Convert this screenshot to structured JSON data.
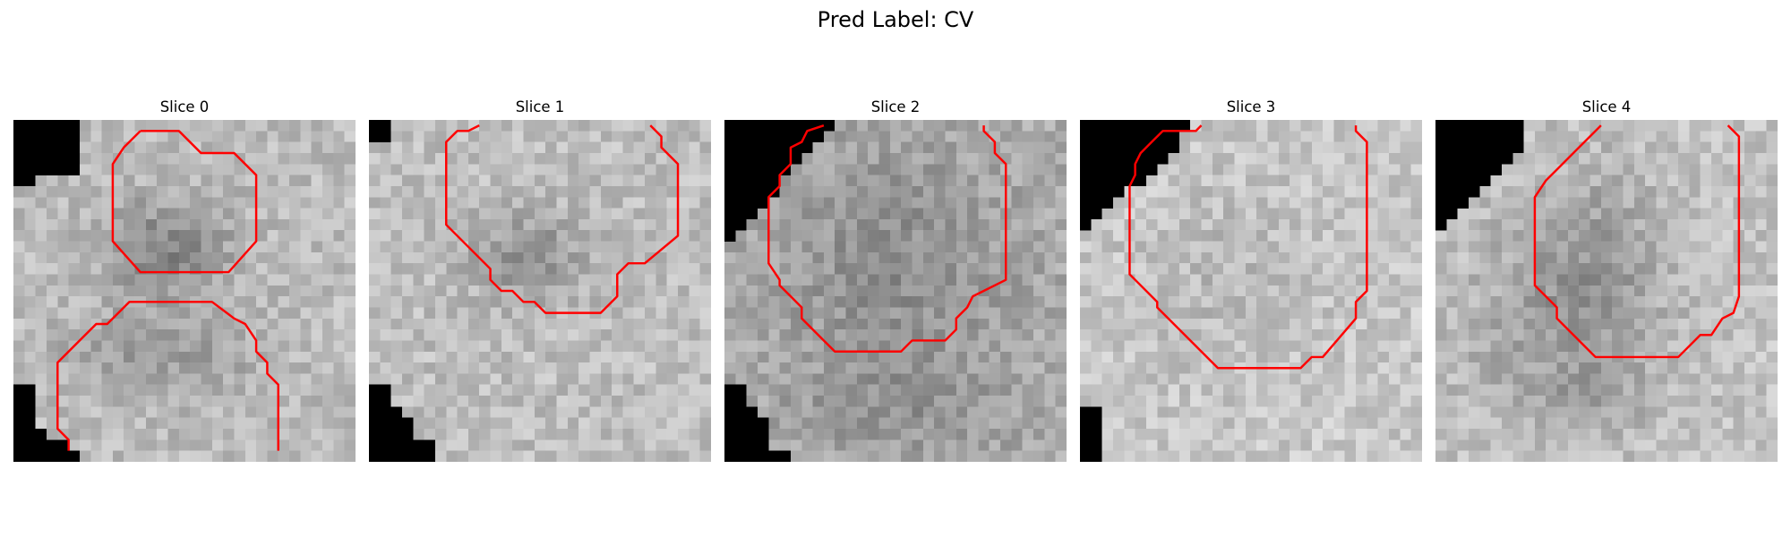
{
  "figure": {
    "title": "Pred Label: CV"
  },
  "panels": [
    {
      "title": "Slice 0"
    },
    {
      "title": "Slice 1"
    },
    {
      "title": "Slice 2"
    },
    {
      "title": "Slice 3"
    },
    {
      "title": "Slice 4"
    }
  ],
  "colors": {
    "contour": "#ff0000",
    "mask": "#000000"
  }
}
